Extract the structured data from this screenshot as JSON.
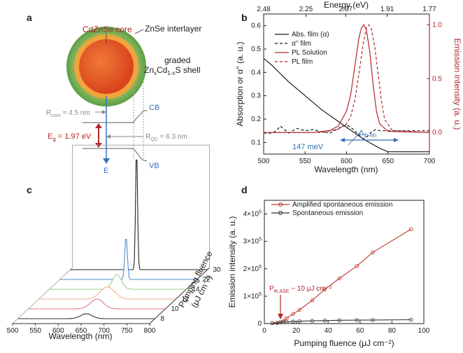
{
  "panel_labels": {
    "a": "a",
    "b": "b",
    "c": "c",
    "d": "d"
  },
  "panel_a": {
    "core_label": "CdZnSe core",
    "interlayer_label": "ZnSe interlayer",
    "shell_label_1": "graded",
    "shell_label_2_prefix": "Zn",
    "shell_label_2_x": "x",
    "shell_label_2_mid": "Cd",
    "shell_label_2_sub": "1-x",
    "shell_label_2_suffix": "S shell",
    "cb_label": "CB",
    "vb_label": "VB",
    "r_core_prefix": "R",
    "r_core_sub": "core",
    "r_core_value": " = 4.5 nm",
    "r_qd_prefix": "R",
    "r_qd_sub": "QD",
    "r_qd_value": " = 6.3 nm",
    "eg_prefix": "E",
    "eg_sub": "g",
    "eg_value": " = 1.97 eV",
    "energy_axis_label": "E",
    "colors": {
      "core": "#e04a1f",
      "interlayer": "#f2a13a",
      "shell": "#5a9e45",
      "energy_arrow": "#3a74b8",
      "eg_arrow": "#b3262b"
    }
  },
  "panel_b_axis_text": {
    "top_label": "Energy (eV)",
    "x_label": "Wavelength (nm)",
    "y_left_label": "Absorption or α'' (a. u.)",
    "y_right_label": "Emission intensity (a. u.)",
    "legend": [
      "Abs. film (α)",
      "α'' film",
      "PL Solution",
      "PL film"
    ],
    "annotation_meV": "147 meV",
    "annotation_delta_prefix": "Δ",
    "annotation_delta_sub": "lh-hh"
  },
  "panel_c_text": {
    "x_label": "Wavelength (nm)",
    "depth_label_1": "Pumping fluence",
    "depth_label_2": "(μJ cm⁻²)"
  },
  "panel_d_text": {
    "x_label": "Pumping fluence (μJ cm⁻²)",
    "y_label": "Emission intensity (a. u.)",
    "legend": [
      "Amplified spontaneous emission",
      "Spontaneous emission"
    ],
    "threshold_prefix": "P",
    "threshold_sub": "th,ASE",
    "threshold_value": " ~ 10 μJ cm⁻²"
  },
  "chart_data": [
    {
      "id": "b",
      "type": "line",
      "xlabel": "Wavelength (nm)",
      "xlim": [
        500,
        700
      ],
      "xticks": [
        500,
        550,
        600,
        650,
        700
      ],
      "ylabel_left": "Absorption or α'' (a. u.)",
      "ylim_left": [
        0.05,
        0.65
      ],
      "yticks_left": [
        0.1,
        0.2,
        0.3,
        0.4,
        0.5,
        0.6
      ],
      "ylabel_right": "Emission intensity (a. u.)",
      "ylim_right": [
        -0.2,
        1.1
      ],
      "yticks_right": [
        0.0,
        0.5,
        1.0
      ],
      "top_axis": {
        "label": "Energy (eV)",
        "ticks": [
          "2.48",
          "2.25",
          "2.07",
          "1.91",
          "1.77"
        ],
        "tick_wavelengths": [
          500,
          551,
          599,
          649,
          700
        ]
      },
      "legend": [
        "Abs. film (α)",
        "α'' film",
        "PL Solution",
        "PL film"
      ],
      "series": [
        {
          "name": "Abs. film (α)",
          "axis": "left",
          "color": "#1a1a1a",
          "dash": "none",
          "x": [
            500,
            510,
            520,
            530,
            540,
            550,
            560,
            570,
            580,
            590,
            600,
            610,
            620,
            630,
            640,
            650,
            700
          ],
          "y": [
            0.46,
            0.43,
            0.395,
            0.36,
            0.33,
            0.3,
            0.27,
            0.24,
            0.215,
            0.19,
            0.165,
            0.14,
            0.115,
            0.095,
            0.075,
            0.06,
            0.06
          ]
        },
        {
          "name": "α'' film",
          "axis": "left",
          "color": "#1a1a1a",
          "dash": "4,3",
          "x": [
            500,
            510,
            515,
            520,
            525,
            530,
            540,
            550,
            560,
            570,
            580,
            590,
            600,
            605,
            610,
            615,
            620,
            625,
            630,
            635,
            640,
            650,
            660,
            700
          ],
          "y": [
            0.14,
            0.14,
            0.15,
            0.17,
            0.155,
            0.14,
            0.16,
            0.15,
            0.155,
            0.145,
            0.14,
            0.16,
            0.175,
            0.165,
            0.15,
            0.13,
            0.115,
            0.125,
            0.145,
            0.155,
            0.15,
            0.15,
            0.15,
            0.15
          ]
        },
        {
          "name": "PL Solution",
          "axis": "right",
          "color": "#b3262b",
          "dash": "none",
          "x": [
            500,
            560,
            580,
            590,
            600,
            605,
            610,
            615,
            618,
            621,
            624,
            628,
            632,
            636,
            640,
            650,
            700
          ],
          "y": [
            0.0,
            0.0,
            0.02,
            0.06,
            0.2,
            0.35,
            0.62,
            0.88,
            0.97,
            1.0,
            0.95,
            0.75,
            0.45,
            0.2,
            0.08,
            0.01,
            0.0
          ]
        },
        {
          "name": "PL film",
          "axis": "right",
          "color": "#b3262b",
          "dash": "4,3",
          "x": [
            500,
            570,
            590,
            600,
            605,
            610,
            615,
            620,
            624,
            627,
            630,
            634,
            638,
            642,
            646,
            655,
            700
          ],
          "y": [
            0.0,
            0.0,
            0.03,
            0.08,
            0.15,
            0.3,
            0.55,
            0.82,
            0.97,
            1.0,
            0.96,
            0.8,
            0.55,
            0.3,
            0.12,
            0.02,
            0.0
          ]
        }
      ],
      "annotations": [
        {
          "text": "147 meV",
          "x": 555,
          "y": 0.07
        },
        {
          "text": "Δlh-hh",
          "x_range": [
            578,
            622
          ],
          "y": 0.092
        }
      ]
    },
    {
      "id": "c",
      "type": "line",
      "title": "",
      "xlabel": "Wavelength (nm)",
      "xticks": [
        500,
        550,
        600,
        650,
        700,
        750,
        800
      ],
      "xlim": [
        500,
        800
      ],
      "depth_label": "Pumping fluence (μJ cm⁻²)",
      "series": [
        {
          "name": "8",
          "fluence": 8,
          "color": "#333333",
          "peak_nm": 650,
          "peak_rel": 0.04,
          "width_nm": 18
        },
        {
          "name": "10",
          "fluence": 10,
          "color": "#e07b7b",
          "peak_nm": 650,
          "peak_rel": 0.08,
          "width_nm": 20
        },
        {
          "name": "12",
          "fluence": 12,
          "color": "#f0b090",
          "peak_nm": 650,
          "peak_rel": 0.1,
          "width_nm": 22
        },
        {
          "name": "14",
          "fluence": 14,
          "color": "#9ecf8e",
          "peak_nm": 648,
          "peak_rel": 0.12,
          "width_nm": 14
        },
        {
          "name": "22",
          "fluence": 22,
          "color": "#4a8fd0",
          "peak_nm": 645,
          "peak_rel": 0.35,
          "width_nm": 4
        },
        {
          "name": "30",
          "fluence": 30,
          "color": "#222222",
          "peak_nm": 645,
          "peak_rel": 1.0,
          "width_nm": 3
        }
      ]
    },
    {
      "id": "d",
      "type": "line",
      "xlabel": "Pumping fluence (μJ cm⁻²)",
      "ylabel": "Emission intensity (a. u.)",
      "xlim": [
        0,
        100
      ],
      "xticks": [
        0,
        20,
        40,
        60,
        80,
        100
      ],
      "ylim": [
        0,
        450000
      ],
      "yticks_labels": [
        [
          "0",
          "",
          ""
        ],
        [
          "1×10",
          "5",
          ""
        ],
        [
          "2×10",
          "5",
          ""
        ],
        [
          "3×10",
          "5",
          ""
        ],
        [
          "4×10",
          "5",
          ""
        ]
      ],
      "yticks": [
        0,
        100000,
        200000,
        300000,
        400000
      ],
      "legend": [
        "Amplified spontaneous emission",
        "Spontaneous emission"
      ],
      "series": [
        {
          "name": "Amplified spontaneous emission",
          "color": "#c0392b",
          "x": [
            5,
            8,
            10,
            12,
            14,
            18,
            22,
            30,
            38,
            47,
            58,
            68,
            92
          ],
          "y": [
            2000,
            3000,
            5000,
            10000,
            20000,
            35000,
            50000,
            85000,
            125000,
            165000,
            210000,
            260000,
            345000
          ]
        },
        {
          "name": "Spontaneous emission",
          "color": "#333333",
          "x": [
            5,
            8,
            10,
            12,
            14,
            18,
            22,
            30,
            38,
            47,
            58,
            68,
            92
          ],
          "y": [
            1500,
            2500,
            4000,
            5000,
            6000,
            7500,
            8500,
            10000,
            11000,
            12000,
            12500,
            13000,
            14000
          ]
        }
      ],
      "annotations": [
        {
          "text": "Pth,ASE ~ 10 μJ cm⁻²",
          "arrow_to": [
            10,
            8000
          ]
        }
      ]
    }
  ]
}
